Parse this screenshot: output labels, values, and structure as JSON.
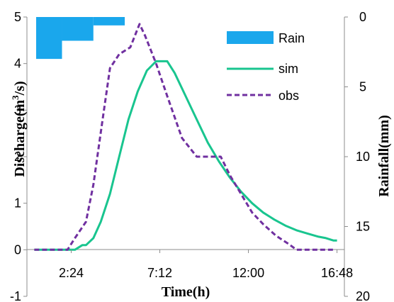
{
  "chart_data": {
    "type": "line",
    "xlabel": "Time(h)",
    "ylabel_left": {
      "main": "Discharge(m",
      "sup": "3",
      "tail": "/s)"
    },
    "ylabel_right": "Rainfall(mm)",
    "x_range_hours": [
      0,
      17.2
    ],
    "x_ticks": [
      {
        "value": 2.4,
        "label": "2:24"
      },
      {
        "value": 7.2,
        "label": "7:12"
      },
      {
        "value": 12.0,
        "label": "12:00"
      },
      {
        "value": 16.8,
        "label": "16:48"
      }
    ],
    "y_left_range": [
      -1,
      5
    ],
    "y_left_ticks": [
      "-1",
      "0",
      "1",
      "2",
      "3",
      "4",
      "5"
    ],
    "y_right_range": [
      0,
      20
    ],
    "y_right_ticks": [
      "0",
      "5",
      "10",
      "15",
      "20"
    ],
    "grid": false,
    "legend_position": "top-right",
    "colors": {
      "rain": "#1AA7EC",
      "sim": "#19C58F",
      "obs": "#7030A0"
    },
    "series": [
      {
        "name": "Rain",
        "kind": "bar-inverted",
        "points": [
          {
            "x0": 0.5,
            "x1": 1.9,
            "value": 3.0
          },
          {
            "x0": 1.9,
            "x1": 3.6,
            "value": 1.7
          },
          {
            "x0": 3.6,
            "x1": 5.3,
            "value": 0.6
          }
        ]
      },
      {
        "name": "sim",
        "kind": "line",
        "points": [
          [
            0.4,
            0.0
          ],
          [
            2.6,
            0.0
          ],
          [
            3.0,
            0.1
          ],
          [
            3.2,
            0.1
          ],
          [
            3.6,
            0.25
          ],
          [
            4.0,
            0.6
          ],
          [
            4.5,
            1.2
          ],
          [
            5.0,
            2.0
          ],
          [
            5.5,
            2.8
          ],
          [
            6.0,
            3.4
          ],
          [
            6.5,
            3.85
          ],
          [
            7.0,
            4.05
          ],
          [
            7.6,
            4.05
          ],
          [
            8.0,
            3.8
          ],
          [
            8.6,
            3.3
          ],
          [
            9.2,
            2.8
          ],
          [
            9.8,
            2.3
          ],
          [
            10.4,
            1.9
          ],
          [
            11.0,
            1.55
          ],
          [
            11.6,
            1.25
          ],
          [
            12.2,
            1.0
          ],
          [
            12.8,
            0.8
          ],
          [
            13.4,
            0.65
          ],
          [
            14.0,
            0.52
          ],
          [
            14.6,
            0.42
          ],
          [
            15.2,
            0.35
          ],
          [
            15.8,
            0.28
          ],
          [
            16.2,
            0.25
          ],
          [
            16.6,
            0.2
          ],
          [
            16.8,
            0.2
          ]
        ]
      },
      {
        "name": "obs",
        "kind": "dashed-line",
        "points": [
          [
            0.4,
            0.0
          ],
          [
            2.2,
            0.0
          ],
          [
            2.6,
            0.25
          ],
          [
            3.2,
            0.6
          ],
          [
            3.6,
            1.4
          ],
          [
            4.1,
            2.8
          ],
          [
            4.5,
            3.9
          ],
          [
            5.0,
            4.2
          ],
          [
            5.6,
            4.35
          ],
          [
            6.1,
            4.85
          ],
          [
            6.4,
            4.6
          ],
          [
            7.0,
            4.0
          ],
          [
            7.6,
            3.3
          ],
          [
            8.4,
            2.4
          ],
          [
            9.2,
            2.0
          ],
          [
            10.5,
            2.0
          ],
          [
            11.0,
            1.6
          ],
          [
            11.6,
            1.2
          ],
          [
            12.2,
            0.8
          ],
          [
            12.8,
            0.55
          ],
          [
            13.5,
            0.3
          ],
          [
            14.2,
            0.12
          ],
          [
            14.6,
            0.0
          ],
          [
            15.0,
            0.0
          ],
          [
            16.6,
            0.0
          ]
        ]
      }
    ]
  }
}
